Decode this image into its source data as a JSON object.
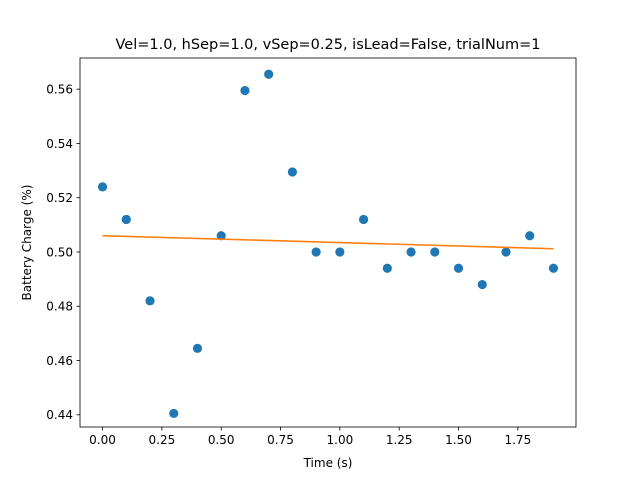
{
  "chart_data": {
    "type": "scatter",
    "title": "Vel=1.0, hSep=1.0, vSep=0.25, isLead=False, trialNum=1",
    "xlabel": "Time (s)",
    "ylabel": "Battery Charge (%)",
    "xlim": [
      -0.095,
      1.995
    ],
    "ylim": [
      0.4355,
      0.5715
    ],
    "xticks": [
      0.0,
      0.25,
      0.5,
      0.75,
      1.0,
      1.25,
      1.5,
      1.75
    ],
    "xtick_labels": [
      "0.00",
      "0.25",
      "0.50",
      "0.75",
      "1.00",
      "1.25",
      "1.50",
      "1.75"
    ],
    "yticks": [
      0.44,
      0.46,
      0.48,
      0.5,
      0.52,
      0.54,
      0.56
    ],
    "ytick_labels": [
      "0.44",
      "0.46",
      "0.48",
      "0.50",
      "0.52",
      "0.54",
      "0.56"
    ],
    "grid": false,
    "series": [
      {
        "type": "scatter",
        "color": "#1f77b4",
        "x": [
          0.0,
          0.1,
          0.2,
          0.3,
          0.4,
          0.5,
          0.6,
          0.7,
          0.8,
          0.9,
          1.0,
          1.1,
          1.2,
          1.3,
          1.4,
          1.5,
          1.6,
          1.7,
          1.8,
          1.9
        ],
        "y": [
          0.524,
          0.512,
          0.482,
          0.4405,
          0.4645,
          0.506,
          0.5595,
          0.5655,
          0.5295,
          0.5,
          0.5,
          0.512,
          0.494,
          0.5,
          0.5,
          0.494,
          0.488,
          0.5,
          0.506,
          0.494
        ]
      },
      {
        "type": "line",
        "color": "#ff7f0e",
        "x": [
          0.0,
          1.9
        ],
        "y": [
          0.506,
          0.5012
        ]
      }
    ]
  }
}
